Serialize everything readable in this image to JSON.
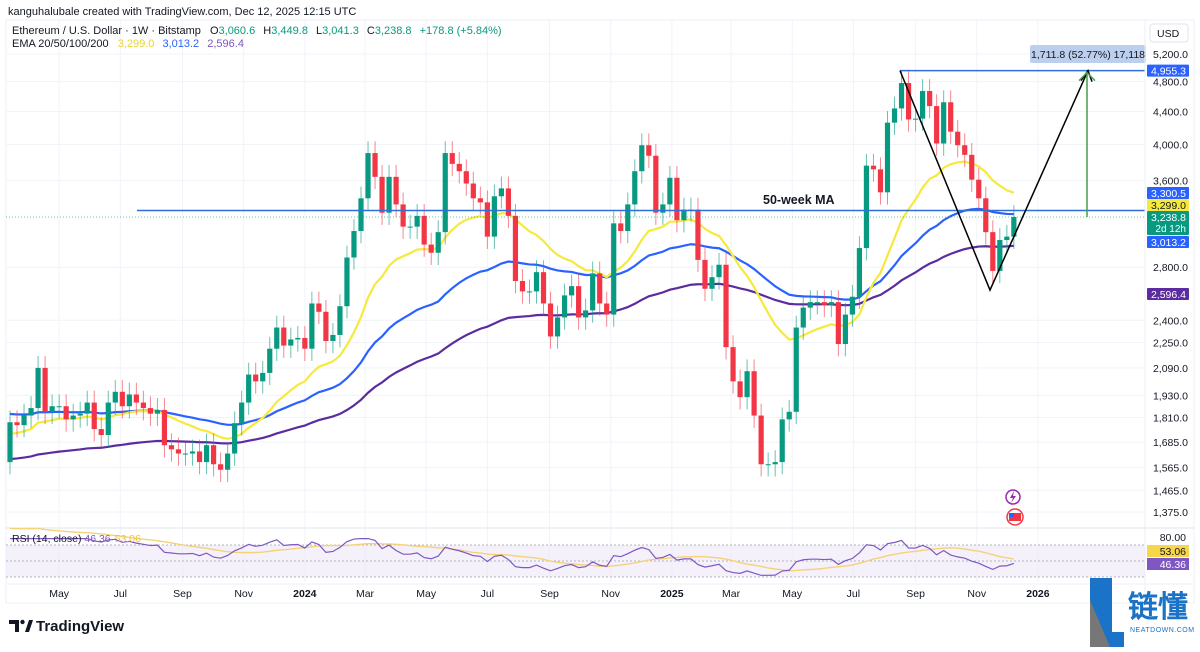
{
  "header": {
    "credit": "kanguhalubale created with TradingView.com, Dec 12, 2025 12:15 UTC",
    "symbol": "Ethereum / U.S. Dollar · 1W · Bitstamp",
    "o_label": "O",
    "o": "3,060.6",
    "h_label": "H",
    "h": "3,449.8",
    "l_label": "L",
    "l": "3,041.3",
    "c_label": "C",
    "c": "3,238.8",
    "change": "+178.8 (+5.84%)",
    "ema_label": "EMA 20/50/100/200",
    "ema_values": [
      "3,299.0",
      "3,013.2",
      "2,596.4"
    ]
  },
  "colors": {
    "up": "#089981",
    "down": "#f23645",
    "ema20": "#f7e93b",
    "ema50": "#2962ff",
    "ema100": "#5b2c9f",
    "hline": "#2f6fd6",
    "rsi": "#7e57c2",
    "rsi_ma": "#f5d27a"
  },
  "chart_data": {
    "type": "candlestick",
    "scale": "log",
    "currency": "USD",
    "interval": "1W",
    "start_week": "2023-03-13",
    "first_open": 1590,
    "closes": [
      1785,
      1770,
      1820,
      1860,
      2090,
      1840,
      1870,
      1870,
      1800,
      1820,
      1830,
      1890,
      1750,
      1720,
      1890,
      1950,
      1870,
      1935,
      1890,
      1860,
      1830,
      1850,
      1670,
      1650,
      1630,
      1630,
      1640,
      1590,
      1670,
      1580,
      1555,
      1630,
      1780,
      1890,
      2050,
      2010,
      2060,
      2210,
      2350,
      2230,
      2270,
      2280,
      2210,
      2520,
      2460,
      2260,
      2300,
      2500,
      2880,
      3110,
      3420,
      3900,
      3640,
      3280,
      3640,
      3360,
      3150,
      3150,
      3250,
      2990,
      2920,
      3100,
      3900,
      3780,
      3700,
      3570,
      3420,
      3380,
      3060,
      3440,
      3520,
      3250,
      2690,
      2610,
      2610,
      2760,
      2520,
      2290,
      2420,
      2580,
      2650,
      2420,
      2470,
      2750,
      2520,
      2440,
      3180,
      3110,
      3360,
      3700,
      3990,
      3870,
      3280,
      3360,
      3630,
      3210,
      3310,
      3310,
      2860,
      2630,
      2720,
      2820,
      2220,
      2010,
      1920,
      2070,
      1820,
      1580,
      1580,
      1590,
      1800,
      1840,
      2350,
      2490,
      2530,
      2530,
      2510,
      2530,
      2240,
      2440,
      2570,
      2960,
      3760,
      3720,
      3480,
      4260,
      4440,
      4780,
      4300,
      4310,
      4670,
      4470,
      4010,
      4520,
      4150,
      3990,
      3880,
      3610,
      3420,
      3100,
      2770,
      3030,
      3060,
      3238.8
    ],
    "y_ticks": [
      "5,200.0",
      "4,800.0",
      "4,400.0",
      "4,000.0",
      "3,600.0",
      "2,800.0",
      "2,400.0",
      "2,250.0",
      "2,090.0",
      "1,930.0",
      "1,810.0",
      "1,685.0",
      "1,565.0",
      "1,465.0",
      "1,375.0"
    ],
    "y_tick_values": [
      5200,
      4800,
      4400,
      4000,
      3600,
      2800,
      2400,
      2250,
      2090,
      1930,
      1810,
      1685,
      1565,
      1465,
      1375
    ],
    "x_ticks": [
      {
        "label": "May",
        "date": "2023-05-01"
      },
      {
        "label": "Jul",
        "date": "2023-07-01"
      },
      {
        "label": "Sep",
        "date": "2023-09-01"
      },
      {
        "label": "Nov",
        "date": "2023-11-01"
      },
      {
        "label": "2024",
        "date": "2024-01-01",
        "bold": true
      },
      {
        "label": "Mar",
        "date": "2024-03-01"
      },
      {
        "label": "May",
        "date": "2024-05-01"
      },
      {
        "label": "Jul",
        "date": "2024-07-01"
      },
      {
        "label": "Sep",
        "date": "2024-09-01"
      },
      {
        "label": "Nov",
        "date": "2024-11-01"
      },
      {
        "label": "2025",
        "date": "2025-01-01",
        "bold": true
      },
      {
        "label": "Mar",
        "date": "2025-03-01"
      },
      {
        "label": "May",
        "date": "2025-05-01"
      },
      {
        "label": "Jul",
        "date": "2025-07-01"
      },
      {
        "label": "Sep",
        "date": "2025-09-01"
      },
      {
        "label": "Nov",
        "date": "2025-11-01"
      },
      {
        "label": "2026",
        "date": "2026-01-01",
        "bold": true
      }
    ],
    "price_tags": {
      "target": "4,955.3",
      "ma_line": "3,300.5",
      "ema20": "3,299.0",
      "last": "3,238.8",
      "countdown": "2d 12h",
      "ema50": "3,013.2",
      "ema100": "2,596.4"
    },
    "levels": {
      "target": 4955.3,
      "ma_line": 3300.5,
      "last": 3238.8,
      "pattern_low": 2620
    },
    "annotations": {
      "ma_label": "50-week MA",
      "measure": "1,711.8 (52.77%) 17,118"
    },
    "ema_final": {
      "ema20": 3299.0,
      "ema50": 3013.2,
      "ema100": 2596.4
    },
    "rsi": {
      "label": "RSI (14, close)",
      "value": "46.36",
      "ma_value": "53.06",
      "axis_top": "80.00",
      "levels": [
        70,
        50,
        30
      ]
    }
  },
  "footer": {
    "brand": "TradingView",
    "watermark": "链懂",
    "watermark_sub": "NEATDOWN.COM"
  }
}
